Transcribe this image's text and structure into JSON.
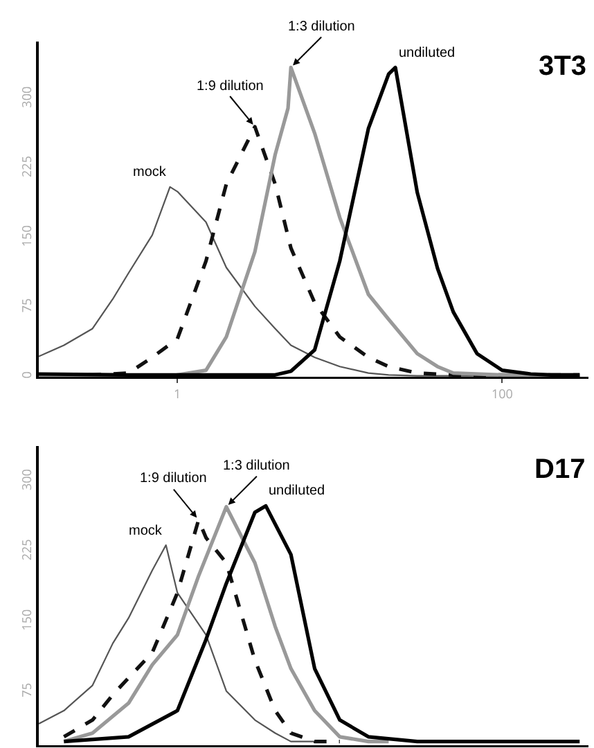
{
  "chart_data": [
    {
      "type": "line",
      "title": "3T3",
      "log": "x",
      "xlim": [
        0.14,
        340
      ],
      "xticks": [
        1,
        100
      ],
      "ylim": [
        0,
        362
      ],
      "yticks": [
        0,
        75,
        150,
        225,
        300
      ],
      "grid": false,
      "legend": false,
      "marker": "none",
      "series": [
        {
          "name": "mock",
          "color": "#555555",
          "line_style": "solid",
          "x": [
            0.14,
            0.2,
            0.3,
            0.4,
            0.5,
            0.7,
            0.9,
            1,
            1.5,
            2,
            3,
            4,
            5,
            7,
            10,
            15,
            20,
            30,
            50,
            100,
            200,
            300
          ],
          "values": [
            22,
            34,
            52,
            84,
            112,
            153,
            205,
            200,
            167,
            118,
            76,
            52,
            34,
            21,
            11,
            4,
            2,
            1,
            1,
            1,
            1,
            1
          ]
        },
        {
          "name": "1:9 dilution",
          "color": "#111111",
          "line_style": "dashed",
          "x": [
            0.14,
            0.3,
            0.5,
            0.7,
            1,
            1.5,
            2,
            3,
            4,
            5,
            7,
            10,
            15,
            20,
            30,
            50,
            100,
            200,
            300
          ],
          "values": [
            2,
            2,
            4,
            21,
            41,
            125,
            208,
            270,
            208,
            139,
            80,
            43,
            21,
            11,
            4,
            2,
            2,
            2,
            2
          ]
        },
        {
          "name": "1:3 dilution",
          "color": "#999999",
          "line_style": "solid",
          "x": [
            0.14,
            0.5,
            1,
            1.5,
            2,
            3,
            4,
            4.8,
            5,
            7,
            10,
            15,
            20,
            30,
            40,
            50,
            100,
            200,
            300
          ],
          "values": [
            1,
            1,
            2,
            7,
            43,
            135,
            240,
            290,
            334,
            263,
            172,
            89,
            62,
            25,
            11,
            4,
            2,
            2,
            2
          ]
        },
        {
          "name": "undiluted",
          "color": "#000000",
          "line_style": "solid",
          "x": [
            0.14,
            0.5,
            1,
            2,
            4,
            5,
            7,
            10,
            15,
            20,
            22,
            30,
            40,
            50,
            70,
            100,
            150,
            200,
            300
          ],
          "values": [
            3,
            2,
            2,
            2,
            2,
            6,
            29,
            125,
            268,
            327,
            334,
            199,
            117,
            70,
            25,
            7,
            3,
            2,
            2
          ]
        }
      ]
    },
    {
      "type": "line",
      "title": "D17",
      "log": "x",
      "xlim": [
        0.14,
        340
      ],
      "ylim": [
        18,
        338
      ],
      "yticks": [
        75,
        150,
        225,
        300
      ],
      "tick_labels": "y",
      "grid": false,
      "legend": false,
      "marker": "none",
      "series": [
        {
          "name": "mock",
          "color": "#555555",
          "line_style": "solid",
          "x": [
            0.14,
            0.2,
            0.3,
            0.4,
            0.5,
            0.7,
            0.85,
            1,
            1.5,
            2,
            3,
            4,
            5,
            7
          ],
          "values": [
            41,
            55,
            82,
            127,
            154,
            205,
            232,
            181,
            136,
            76,
            45,
            31,
            22,
            22
          ]
        },
        {
          "name": "1:9 dilution",
          "color": "#111111",
          "line_style": "dashed",
          "x": [
            0.2,
            0.3,
            0.4,
            0.5,
            0.7,
            1,
            1.35,
            1.5,
            2,
            3,
            4,
            5,
            7,
            10
          ],
          "values": [
            27,
            45,
            72,
            90,
            117,
            181,
            259,
            240,
            213,
            109,
            55,
            31,
            22,
            22
          ]
        },
        {
          "name": "1:3 dilution",
          "color": "#999999",
          "line_style": "solid",
          "x": [
            0.2,
            0.3,
            0.5,
            0.7,
            1,
            1.35,
            2,
            3,
            4,
            5,
            7,
            10,
            15,
            20
          ],
          "values": [
            22,
            31,
            63,
            104,
            136,
            199,
            273,
            213,
            145,
            100,
            55,
            27,
            22,
            22
          ]
        },
        {
          "name": "undiluted",
          "color": "#000000",
          "line_style": "solid",
          "x": [
            0.2,
            0.5,
            1,
            1.5,
            2,
            3,
            3.5,
            5,
            7,
            10,
            15,
            30,
            100,
            300
          ],
          "values": [
            22,
            27,
            55,
            131,
            191,
            267,
            274,
            222,
            100,
            45,
            27,
            22,
            22,
            22
          ]
        }
      ]
    }
  ]
}
